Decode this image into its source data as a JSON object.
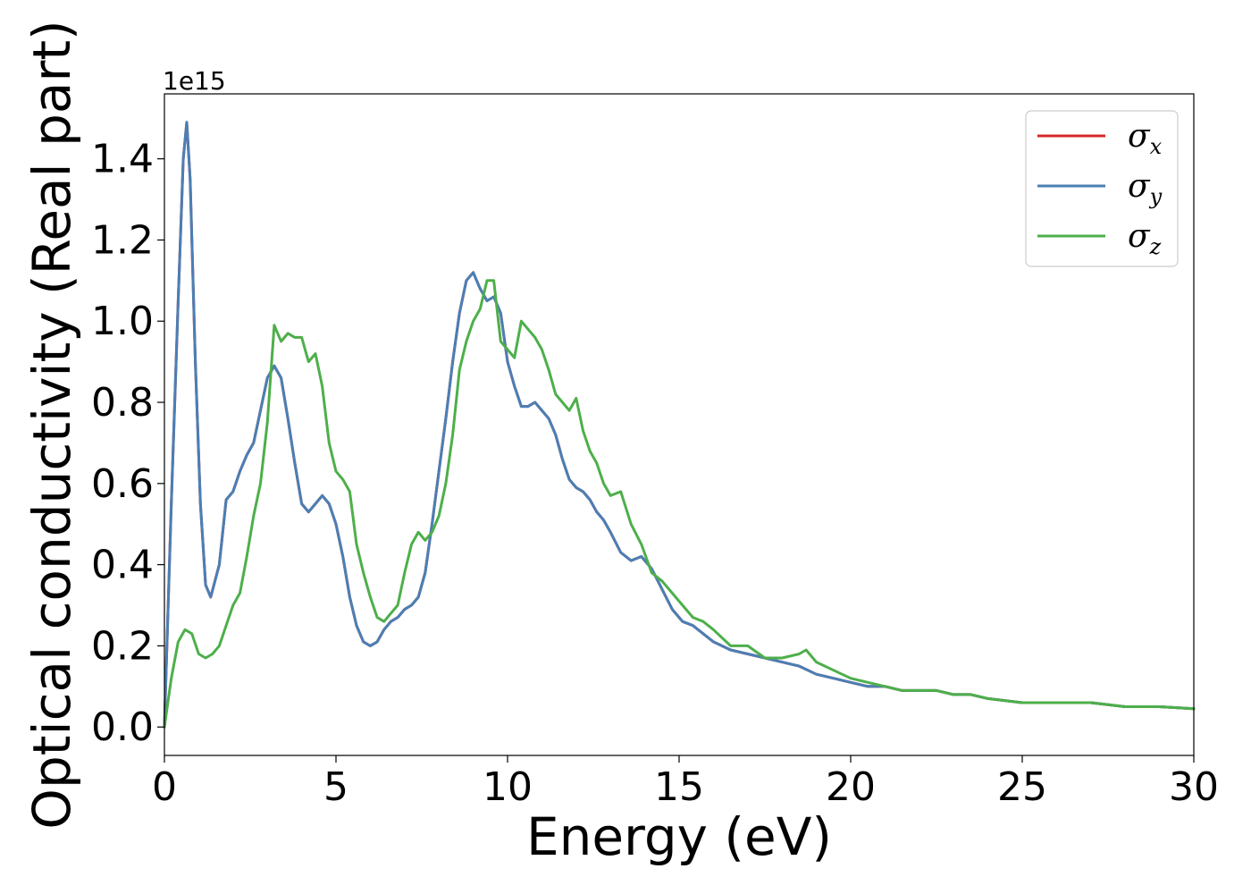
{
  "chart_data": {
    "type": "line",
    "xlabel": "Energy (eV)",
    "ylabel": "Optical conductivity (Real part)",
    "y_offset_label": "1e15",
    "xlim": [
      0,
      30
    ],
    "ylim": [
      -0.07,
      1.56
    ],
    "xticks": [
      0,
      5,
      10,
      15,
      20,
      25,
      30
    ],
    "xtick_labels": [
      "0",
      "5",
      "10",
      "15",
      "20",
      "25",
      "30"
    ],
    "yticks": [
      0.0,
      0.2,
      0.4,
      0.6,
      0.8,
      1.0,
      1.2,
      1.4
    ],
    "ytick_labels": [
      "0.0",
      "0.2",
      "0.4",
      "0.6",
      "0.8",
      "1.0",
      "1.2",
      "1.4"
    ],
    "grid": false,
    "legend_position": "top-right",
    "series": [
      {
        "name": "σx",
        "legend_symbol": "σ",
        "legend_subscript": "x",
        "color": "#d62728",
        "x": [
          0,
          0.2,
          0.4,
          0.55,
          0.65,
          0.75,
          0.9,
          1.05,
          1.2,
          1.35,
          1.6,
          1.8,
          2.0,
          2.2,
          2.4,
          2.6,
          2.8,
          3.0,
          3.2,
          3.4,
          3.6,
          3.8,
          4.0,
          4.2,
          4.4,
          4.6,
          4.8,
          5.0,
          5.2,
          5.4,
          5.6,
          5.8,
          6.0,
          6.2,
          6.4,
          6.6,
          6.8,
          7.0,
          7.2,
          7.4,
          7.6,
          7.8,
          8.0,
          8.2,
          8.4,
          8.6,
          8.8,
          9.0,
          9.2,
          9.4,
          9.6,
          9.8,
          10.0,
          10.2,
          10.4,
          10.6,
          10.8,
          11.0,
          11.2,
          11.4,
          11.6,
          11.8,
          12.0,
          12.2,
          12.4,
          12.6,
          12.8,
          13.0,
          13.3,
          13.6,
          13.9,
          14.2,
          14.5,
          14.8,
          15.1,
          15.4,
          15.7,
          16.0,
          16.5,
          17.0,
          17.5,
          18.0,
          18.5,
          19.0,
          19.5,
          20.0,
          20.5,
          21.0,
          21.5,
          22.0,
          22.5,
          23.0,
          23.5,
          24.0,
          25.0,
          26.0,
          27.0,
          28.0,
          29.0,
          30.0
        ],
        "values": [
          0,
          0.55,
          1.05,
          1.4,
          1.49,
          1.35,
          0.9,
          0.55,
          0.35,
          0.32,
          0.4,
          0.56,
          0.58,
          0.63,
          0.67,
          0.7,
          0.78,
          0.86,
          0.89,
          0.86,
          0.76,
          0.65,
          0.55,
          0.53,
          0.55,
          0.57,
          0.55,
          0.5,
          0.42,
          0.32,
          0.25,
          0.21,
          0.2,
          0.21,
          0.24,
          0.26,
          0.27,
          0.29,
          0.3,
          0.32,
          0.38,
          0.5,
          0.63,
          0.76,
          0.9,
          1.02,
          1.1,
          1.12,
          1.08,
          1.05,
          1.06,
          1.02,
          0.9,
          0.84,
          0.79,
          0.79,
          0.8,
          0.78,
          0.76,
          0.72,
          0.66,
          0.61,
          0.59,
          0.58,
          0.56,
          0.53,
          0.51,
          0.48,
          0.43,
          0.41,
          0.42,
          0.39,
          0.34,
          0.29,
          0.26,
          0.25,
          0.23,
          0.21,
          0.19,
          0.18,
          0.17,
          0.16,
          0.15,
          0.13,
          0.12,
          0.11,
          0.1,
          0.1,
          0.09,
          0.09,
          0.09,
          0.08,
          0.08,
          0.07,
          0.06,
          0.06,
          0.06,
          0.05,
          0.05,
          0.045
        ]
      },
      {
        "name": "σy",
        "legend_symbol": "σ",
        "legend_subscript": "y",
        "color": "#4a7fb5",
        "x": [
          0,
          0.2,
          0.4,
          0.55,
          0.65,
          0.75,
          0.9,
          1.05,
          1.2,
          1.35,
          1.6,
          1.8,
          2.0,
          2.2,
          2.4,
          2.6,
          2.8,
          3.0,
          3.2,
          3.4,
          3.6,
          3.8,
          4.0,
          4.2,
          4.4,
          4.6,
          4.8,
          5.0,
          5.2,
          5.4,
          5.6,
          5.8,
          6.0,
          6.2,
          6.4,
          6.6,
          6.8,
          7.0,
          7.2,
          7.4,
          7.6,
          7.8,
          8.0,
          8.2,
          8.4,
          8.6,
          8.8,
          9.0,
          9.2,
          9.4,
          9.6,
          9.8,
          10.0,
          10.2,
          10.4,
          10.6,
          10.8,
          11.0,
          11.2,
          11.4,
          11.6,
          11.8,
          12.0,
          12.2,
          12.4,
          12.6,
          12.8,
          13.0,
          13.3,
          13.6,
          13.9,
          14.2,
          14.5,
          14.8,
          15.1,
          15.4,
          15.7,
          16.0,
          16.5,
          17.0,
          17.5,
          18.0,
          18.5,
          19.0,
          19.5,
          20.0,
          20.5,
          21.0,
          21.5,
          22.0,
          22.5,
          23.0,
          23.5,
          24.0,
          25.0,
          26.0,
          27.0,
          28.0,
          29.0,
          30.0
        ],
        "values": [
          0,
          0.55,
          1.05,
          1.4,
          1.49,
          1.35,
          0.9,
          0.55,
          0.35,
          0.32,
          0.4,
          0.56,
          0.58,
          0.63,
          0.67,
          0.7,
          0.78,
          0.86,
          0.89,
          0.86,
          0.76,
          0.65,
          0.55,
          0.53,
          0.55,
          0.57,
          0.55,
          0.5,
          0.42,
          0.32,
          0.25,
          0.21,
          0.2,
          0.21,
          0.24,
          0.26,
          0.27,
          0.29,
          0.3,
          0.32,
          0.38,
          0.5,
          0.63,
          0.76,
          0.9,
          1.02,
          1.1,
          1.12,
          1.08,
          1.05,
          1.06,
          1.02,
          0.9,
          0.84,
          0.79,
          0.79,
          0.8,
          0.78,
          0.76,
          0.72,
          0.66,
          0.61,
          0.59,
          0.58,
          0.56,
          0.53,
          0.51,
          0.48,
          0.43,
          0.41,
          0.42,
          0.39,
          0.34,
          0.29,
          0.26,
          0.25,
          0.23,
          0.21,
          0.19,
          0.18,
          0.17,
          0.16,
          0.15,
          0.13,
          0.12,
          0.11,
          0.1,
          0.1,
          0.09,
          0.09,
          0.09,
          0.08,
          0.08,
          0.07,
          0.06,
          0.06,
          0.06,
          0.05,
          0.05,
          0.045
        ]
      },
      {
        "name": "σz",
        "legend_symbol": "σ",
        "legend_subscript": "z",
        "color": "#4daf4a",
        "x": [
          0,
          0.2,
          0.4,
          0.6,
          0.8,
          1.0,
          1.2,
          1.4,
          1.6,
          1.8,
          2.0,
          2.2,
          2.4,
          2.6,
          2.8,
          3.0,
          3.2,
          3.4,
          3.6,
          3.8,
          4.0,
          4.2,
          4.4,
          4.6,
          4.8,
          5.0,
          5.2,
          5.4,
          5.6,
          5.8,
          6.0,
          6.2,
          6.4,
          6.6,
          6.8,
          7.0,
          7.2,
          7.4,
          7.6,
          7.8,
          8.0,
          8.2,
          8.4,
          8.6,
          8.8,
          9.0,
          9.2,
          9.4,
          9.6,
          9.8,
          10.0,
          10.2,
          10.4,
          10.6,
          10.8,
          11.0,
          11.2,
          11.4,
          11.6,
          11.8,
          12.0,
          12.2,
          12.4,
          12.6,
          12.8,
          13.0,
          13.3,
          13.6,
          13.9,
          14.2,
          14.5,
          14.8,
          15.1,
          15.4,
          15.7,
          16.0,
          16.5,
          17.0,
          17.5,
          18.0,
          18.5,
          18.7,
          19.0,
          19.5,
          20.0,
          20.5,
          21.0,
          21.5,
          22.0,
          22.5,
          23.0,
          23.5,
          24.0,
          25.0,
          26.0,
          27.0,
          28.0,
          29.0,
          30.0
        ],
        "values": [
          0,
          0.12,
          0.21,
          0.24,
          0.23,
          0.18,
          0.17,
          0.18,
          0.2,
          0.25,
          0.3,
          0.33,
          0.42,
          0.52,
          0.6,
          0.75,
          0.99,
          0.95,
          0.97,
          0.96,
          0.96,
          0.9,
          0.92,
          0.84,
          0.7,
          0.63,
          0.61,
          0.58,
          0.45,
          0.38,
          0.32,
          0.27,
          0.26,
          0.28,
          0.3,
          0.38,
          0.45,
          0.48,
          0.46,
          0.48,
          0.52,
          0.6,
          0.72,
          0.88,
          0.95,
          1.0,
          1.03,
          1.1,
          1.1,
          0.95,
          0.93,
          0.91,
          1.0,
          0.98,
          0.96,
          0.93,
          0.88,
          0.82,
          0.8,
          0.78,
          0.81,
          0.73,
          0.68,
          0.65,
          0.6,
          0.57,
          0.58,
          0.5,
          0.45,
          0.38,
          0.36,
          0.33,
          0.3,
          0.27,
          0.26,
          0.24,
          0.2,
          0.2,
          0.17,
          0.17,
          0.18,
          0.19,
          0.16,
          0.14,
          0.12,
          0.11,
          0.1,
          0.09,
          0.09,
          0.09,
          0.08,
          0.08,
          0.07,
          0.06,
          0.06,
          0.06,
          0.05,
          0.05,
          0.045
        ]
      }
    ]
  }
}
